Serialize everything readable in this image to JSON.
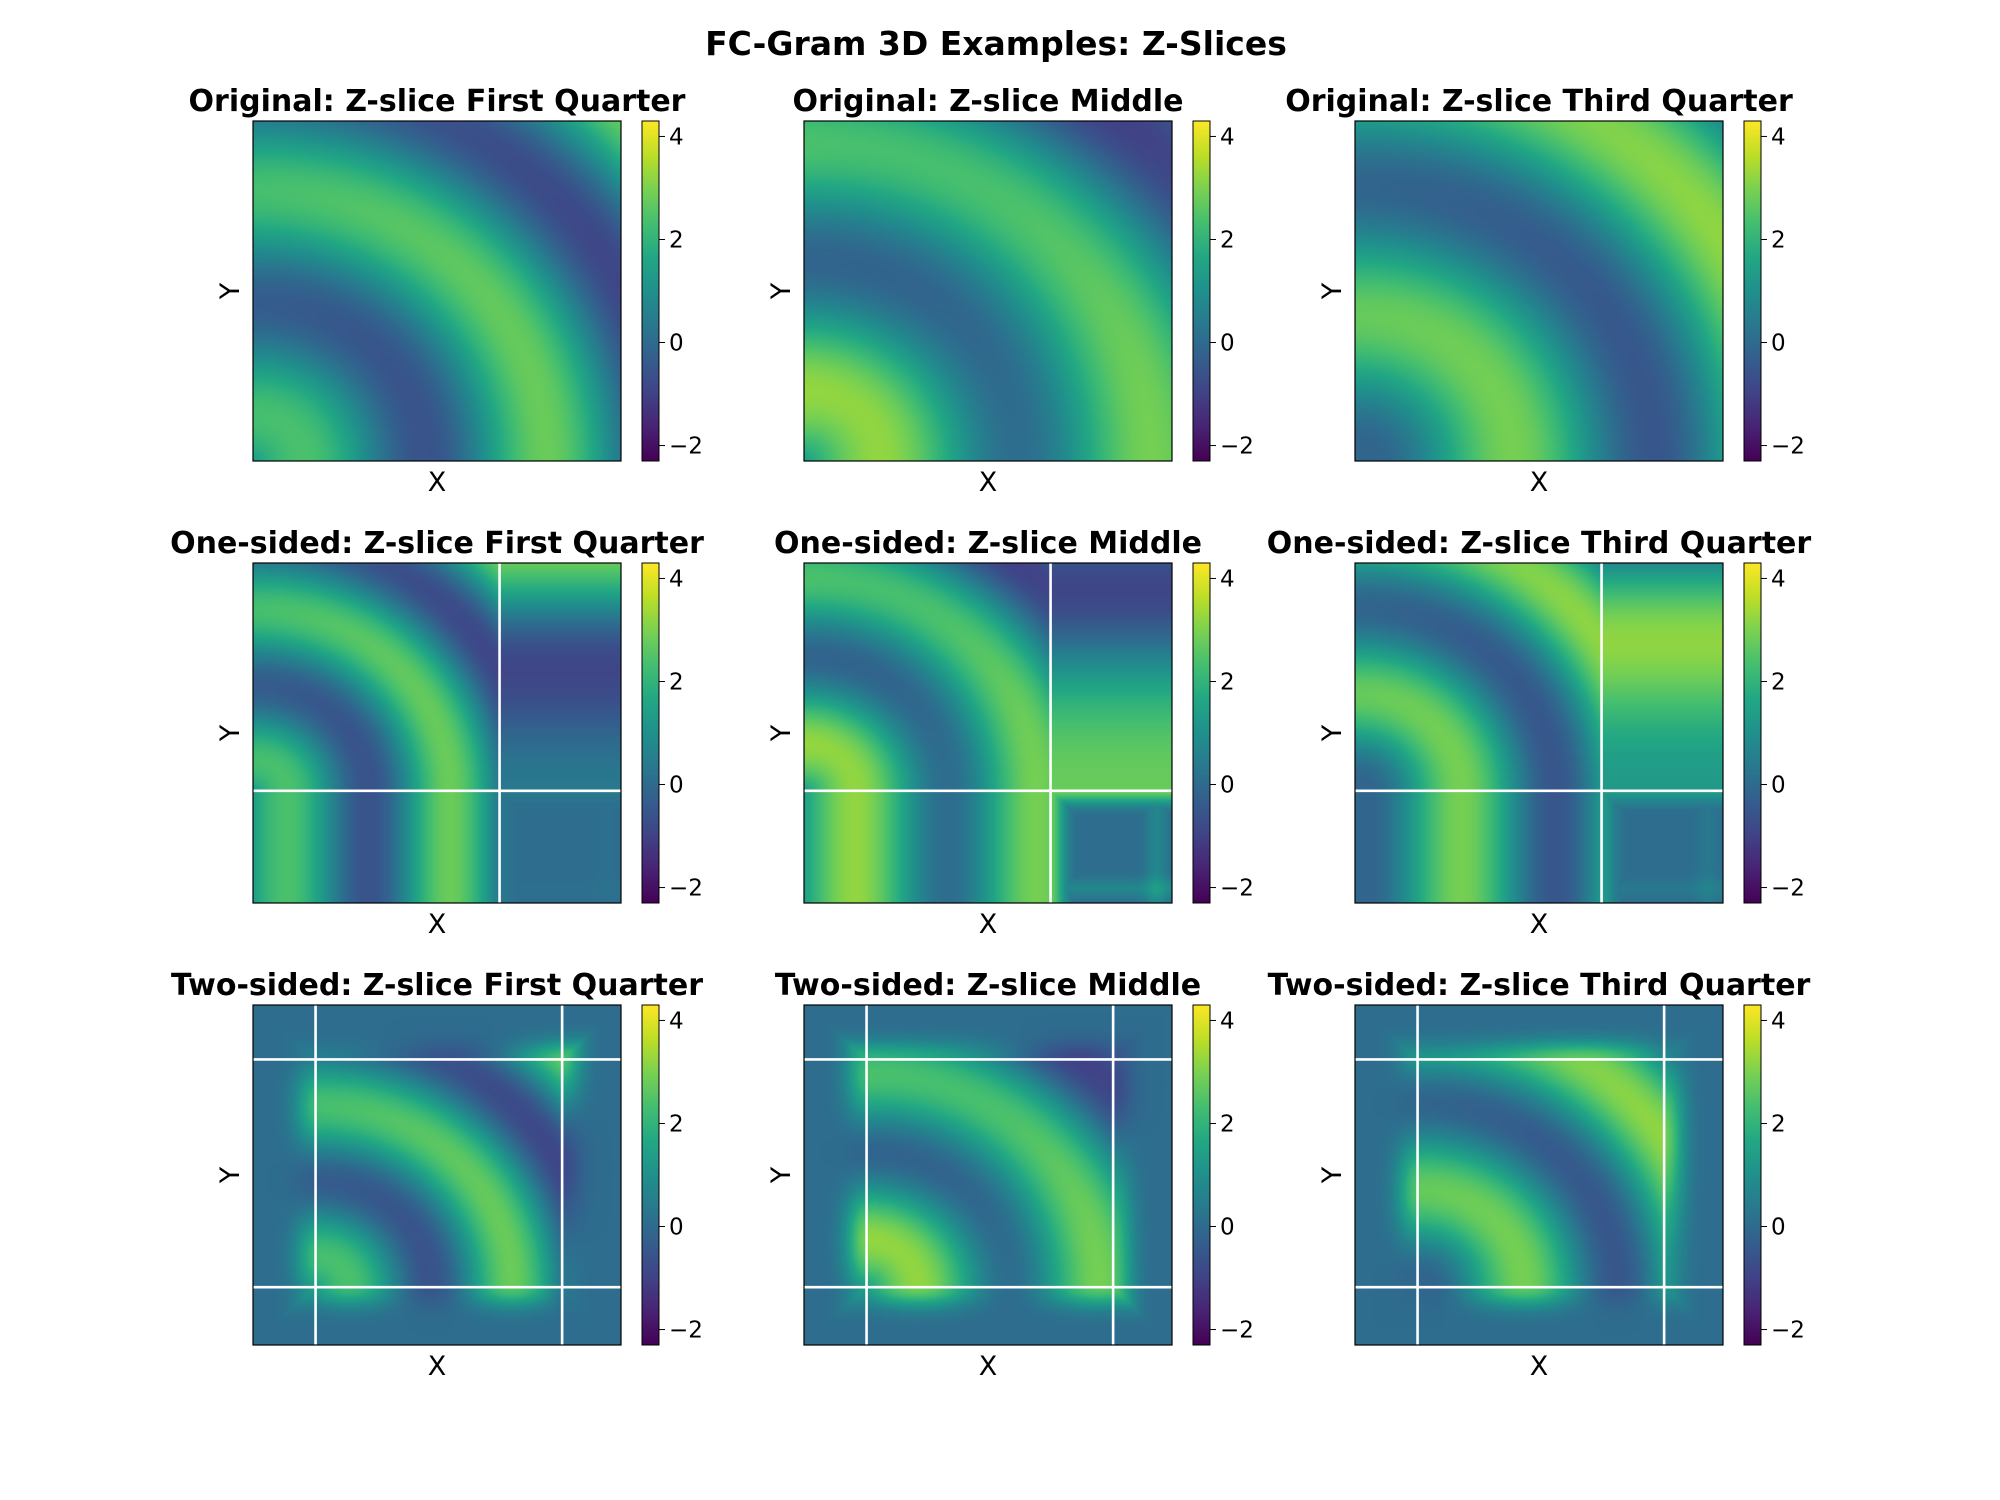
{
  "figure": {
    "suptitle": "FC-Gram 3D Examples: Z-Slices"
  },
  "chart_data": [
    {
      "type": "heatmap",
      "title": "Original: Z-slice First Quarter",
      "xlabel": "X",
      "ylabel": "Y",
      "variant": "original",
      "slice": "first_quarter",
      "colormap": "viridis",
      "clim": [
        -2.3,
        4.3
      ],
      "colorbar_ticks": [
        -2,
        0,
        2,
        4
      ],
      "value_range_approx": [
        -0.8,
        3.2
      ],
      "continuation_lines": {
        "vertical": [],
        "horizontal": []
      }
    },
    {
      "type": "heatmap",
      "title": "Original: Z-slice Middle",
      "xlabel": "X",
      "ylabel": "Y",
      "variant": "original",
      "slice": "middle",
      "colormap": "viridis",
      "clim": [
        -2.3,
        4.3
      ],
      "colorbar_ticks": [
        -2,
        0,
        2,
        4
      ],
      "value_range_approx": [
        -1.1,
        2.7
      ],
      "continuation_lines": {
        "vertical": [],
        "horizontal": []
      }
    },
    {
      "type": "heatmap",
      "title": "Original: Z-slice Third Quarter",
      "xlabel": "X",
      "ylabel": "Y",
      "variant": "original",
      "slice": "third_quarter",
      "colormap": "viridis",
      "clim": [
        -2.3,
        4.3
      ],
      "colorbar_ticks": [
        -2,
        0,
        2,
        4
      ],
      "value_range_approx": [
        -0.6,
        3.3
      ],
      "continuation_lines": {
        "vertical": [],
        "horizontal": []
      }
    },
    {
      "type": "heatmap",
      "title": "One-sided: Z-slice First Quarter",
      "xlabel": "X",
      "ylabel": "Y",
      "variant": "one-sided",
      "slice": "first_quarter",
      "colormap": "viridis",
      "clim": [
        -2.3,
        4.3
      ],
      "colorbar_ticks": [
        -2,
        0,
        2,
        4
      ],
      "value_range_approx": [
        -0.8,
        3.2
      ],
      "continuation_lines": {
        "vertical": [
          0.67
        ],
        "horizontal": [
          0.33
        ]
      }
    },
    {
      "type": "heatmap",
      "title": "One-sided: Z-slice Middle",
      "xlabel": "X",
      "ylabel": "Y",
      "variant": "one-sided",
      "slice": "middle",
      "colormap": "viridis",
      "clim": [
        -2.3,
        4.3
      ],
      "colorbar_ticks": [
        -2,
        0,
        2,
        4
      ],
      "value_range_approx": [
        -1.8,
        2.7
      ],
      "continuation_lines": {
        "vertical": [
          0.67
        ],
        "horizontal": [
          0.33
        ]
      }
    },
    {
      "type": "heatmap",
      "title": "One-sided: Z-slice Third Quarter",
      "xlabel": "X",
      "ylabel": "Y",
      "variant": "one-sided",
      "slice": "third_quarter",
      "colormap": "viridis",
      "clim": [
        -2.3,
        4.3
      ],
      "colorbar_ticks": [
        -2,
        0,
        2,
        4
      ],
      "value_range_approx": [
        -1.4,
        4.2
      ],
      "continuation_lines": {
        "vertical": [
          0.67
        ],
        "horizontal": [
          0.33
        ]
      }
    },
    {
      "type": "heatmap",
      "title": "Two-sided: Z-slice First Quarter",
      "xlabel": "X",
      "ylabel": "Y",
      "variant": "two-sided",
      "slice": "first_quarter",
      "colormap": "viridis",
      "clim": [
        -2.3,
        4.3
      ],
      "colorbar_ticks": [
        -2,
        0,
        2,
        4
      ],
      "value_range_approx": [
        -0.8,
        3.2
      ],
      "continuation_lines": {
        "vertical": [
          0.17,
          0.84
        ],
        "horizontal": [
          0.17,
          0.84
        ]
      }
    },
    {
      "type": "heatmap",
      "title": "Two-sided: Z-slice Middle",
      "xlabel": "X",
      "ylabel": "Y",
      "variant": "two-sided",
      "slice": "middle",
      "colormap": "viridis",
      "clim": [
        -2.3,
        4.3
      ],
      "colorbar_ticks": [
        -2,
        0,
        2,
        4
      ],
      "value_range_approx": [
        -1.8,
        2.7
      ],
      "continuation_lines": {
        "vertical": [
          0.17,
          0.84
        ],
        "horizontal": [
          0.17,
          0.84
        ]
      }
    },
    {
      "type": "heatmap",
      "title": "Two-sided: Z-slice Third Quarter",
      "xlabel": "X",
      "ylabel": "Y",
      "variant": "two-sided",
      "slice": "third_quarter",
      "colormap": "viridis",
      "clim": [
        -2.3,
        4.3
      ],
      "colorbar_ticks": [
        -2,
        0,
        2,
        4
      ],
      "value_range_approx": [
        -1.4,
        4.2
      ],
      "continuation_lines": {
        "vertical": [
          0.17,
          0.84
        ],
        "horizontal": [
          0.17,
          0.84
        ]
      }
    }
  ]
}
